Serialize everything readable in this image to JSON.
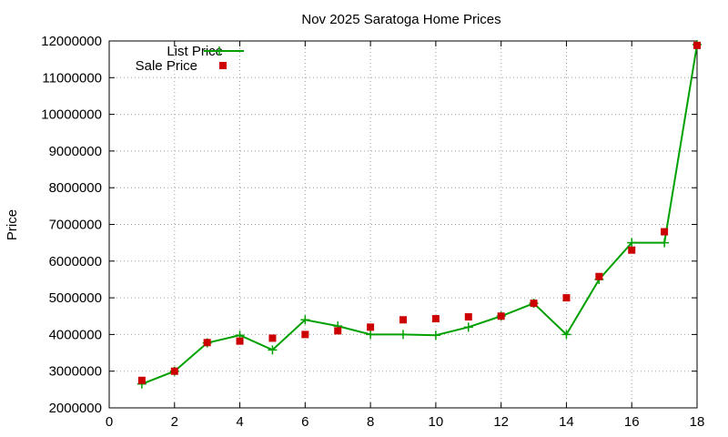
{
  "chart_data": {
    "type": "line",
    "title": "Nov 2025 Saratoga Home Prices",
    "xlabel": "",
    "ylabel": "Price",
    "xlim": [
      0,
      18
    ],
    "ylim": [
      2000000,
      12000000
    ],
    "x_ticks": [
      0,
      2,
      4,
      6,
      8,
      10,
      12,
      14,
      16,
      18
    ],
    "y_ticks": [
      2000000,
      3000000,
      4000000,
      5000000,
      6000000,
      7000000,
      8000000,
      9000000,
      10000000,
      11000000,
      12000000
    ],
    "grid": true,
    "legend_position": "top-left",
    "series": [
      {
        "name": "List Price",
        "style": "line-with-plus-markers",
        "color": "#00a000",
        "x": [
          1,
          2,
          3,
          4,
          5,
          6,
          7,
          8,
          9,
          10,
          11,
          12,
          13,
          14,
          15,
          16,
          17,
          18
        ],
        "values": [
          2650000,
          3000000,
          3770000,
          3980000,
          3580000,
          4400000,
          4230000,
          4000000,
          4000000,
          3980000,
          4200000,
          4500000,
          4850000,
          4000000,
          5500000,
          6500000,
          6500000,
          11900000
        ]
      },
      {
        "name": "Sale Price",
        "style": "square-markers",
        "color": "#cc0000",
        "x": [
          1,
          2,
          3,
          4,
          5,
          6,
          7,
          8,
          9,
          10,
          11,
          12,
          13,
          14,
          15,
          16,
          17,
          18
        ],
        "values": [
          2750000,
          3000000,
          3780000,
          3820000,
          3900000,
          4000000,
          4100000,
          4200000,
          4400000,
          4430000,
          4480000,
          4500000,
          4850000,
          5000000,
          5580000,
          6300000,
          6800000,
          11880000
        ]
      }
    ]
  }
}
